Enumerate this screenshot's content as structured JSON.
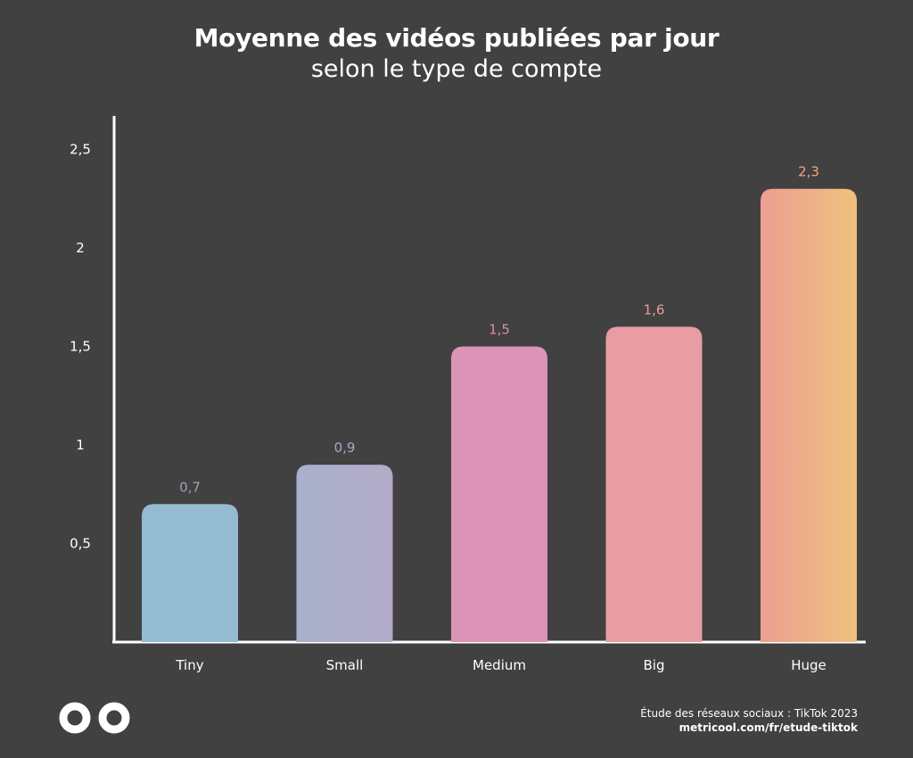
{
  "chart_data": {
    "type": "bar",
    "title": "Moyenne des vidéos publiées par jour",
    "subtitle": "selon le type de compte",
    "categories": [
      "Tiny",
      "Small",
      "Medium",
      "Big",
      "Huge"
    ],
    "values": [
      0.7,
      0.9,
      1.5,
      1.6,
      2.3
    ],
    "value_labels": [
      "0,7",
      "0,9",
      "1,5",
      "1,6",
      "2,3"
    ],
    "yticks": [
      0.5,
      1,
      1.5,
      2,
      2.5
    ],
    "ytick_labels": [
      "0,5",
      "1",
      "1,5",
      "2",
      "2,5"
    ],
    "ylim": [
      0,
      2.5
    ],
    "xlabel": "",
    "ylabel": "",
    "grid": false,
    "bar_colors_top": [
      "#94bbd1",
      "#a8b1cc",
      "#dc94b6",
      "#e89ca3",
      "#ee9e92"
    ],
    "bar_colors_bottom": [
      "#94bbd1",
      "#b4abc8",
      "#dc94b6",
      "#e89ca3",
      "#efc17c"
    ],
    "label_colors": [
      "#98a3b2",
      "#a9a9c0",
      "#e08aa8",
      "#eb9a9e",
      "#efaa7e"
    ],
    "axis_color": "#ffffff",
    "tick_label_color": "#ffffff"
  },
  "footer": {
    "source_line": "Étude des réseaux sociaux : TikTok 2023",
    "source_url": "metricool.com/fr/etude-tiktok",
    "logo_icon": "metricool-infinity-logo"
  },
  "background_color": "#414141"
}
